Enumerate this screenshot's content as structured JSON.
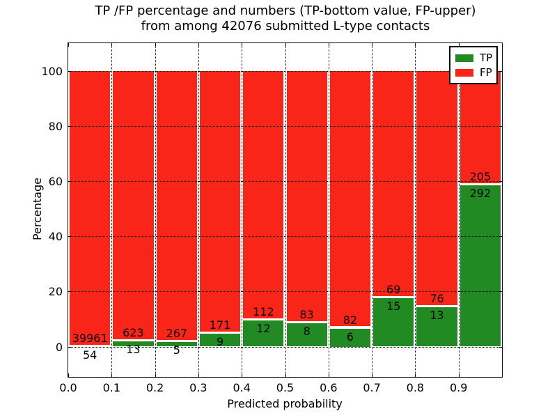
{
  "chart_data": {
    "type": "bar",
    "stacked": true,
    "normalized_to_percent": true,
    "title_lines": [
      "TP /FP percentage and numbers (TP-bottom value, FP-upper)",
      "from among 42076 submitted L-type contacts"
    ],
    "xlabel": "Predicted probability",
    "ylabel": "Percentage",
    "xlim": [
      0.0,
      1.0
    ],
    "ylim": [
      -11,
      110
    ],
    "x_ticks": [
      "0.0",
      "0.1",
      "0.2",
      "0.3",
      "0.4",
      "0.5",
      "0.6",
      "0.7",
      "0.8",
      "0.9"
    ],
    "y_ticks": [
      "0",
      "20",
      "40",
      "60",
      "80",
      "100"
    ],
    "grid": "dotted, both axes, drawn over bars",
    "bin_edges": [
      0.0,
      0.1,
      0.2,
      0.3,
      0.4,
      0.5,
      0.6,
      0.7,
      0.8,
      0.9,
      1.0
    ],
    "series": [
      {
        "name": "TP",
        "color": "#228a22",
        "position": "bottom",
        "counts": [
          54,
          13,
          5,
          9,
          12,
          8,
          6,
          15,
          13,
          292
        ]
      },
      {
        "name": "FP",
        "color": "#f92519",
        "position": "top",
        "counts": [
          39961,
          623,
          267,
          171,
          112,
          83,
          82,
          69,
          76,
          205
        ]
      }
    ],
    "tp_percent_per_bin": [
      0.13,
      2.04,
      1.84,
      5.0,
      9.68,
      8.79,
      6.82,
      17.86,
      14.61,
      58.75
    ],
    "legend": {
      "position": "upper right",
      "entries": [
        {
          "label": "TP",
          "color": "#228a22"
        },
        {
          "label": "FP",
          "color": "#f92519"
        }
      ]
    }
  },
  "colors": {
    "tp_green": "#228a22",
    "fp_red": "#f92519",
    "axis_and_text": "#000000",
    "background": "#ffffff",
    "bar_edge": "#ffffff"
  }
}
